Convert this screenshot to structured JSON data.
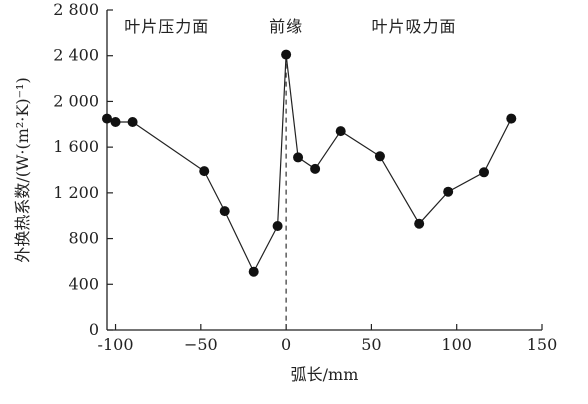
{
  "chart_data": {
    "type": "scatter",
    "title": "",
    "xlabel": "弧长/mm",
    "ylabel": "外换热系数/(W·(m²·K)⁻¹)",
    "xlim": [
      -105,
      150
    ],
    "ylim": [
      0,
      2800
    ],
    "xticks": [
      -100,
      -50,
      0,
      50,
      100,
      150
    ],
    "xtick_labels": [
      "-100",
      "−50",
      "0",
      "50",
      "100",
      "150"
    ],
    "yticks": [
      0,
      400,
      800,
      1200,
      1600,
      2000,
      2400,
      2800
    ],
    "ytick_labels": [
      "0",
      "400",
      "800",
      "1 200",
      "1 600",
      "2 000",
      "2 400",
      "2 800"
    ],
    "grid": false,
    "series": [
      {
        "x": [
          -105,
          -100,
          -90,
          -48,
          -36,
          -19,
          -5,
          0,
          7,
          17,
          32,
          55,
          78,
          95,
          116,
          132
        ],
        "y": [
          1850,
          1820,
          1820,
          1390,
          1040,
          510,
          910,
          2410,
          1510,
          1410,
          1740,
          1520,
          930,
          1210,
          1380,
          1850
        ]
      }
    ],
    "annotations": [
      {
        "text": "叶片压力面",
        "x": -70,
        "y": 2660
      },
      {
        "text": "前缘",
        "x": 0,
        "y": 2660
      },
      {
        "text": "叶片吸力面",
        "x": 75,
        "y": 2660
      }
    ],
    "reference_line": {
      "x": 0,
      "style": "dashed"
    },
    "colors": {
      "line": "#222222",
      "marker": "#111111",
      "axis": "#222222"
    }
  }
}
